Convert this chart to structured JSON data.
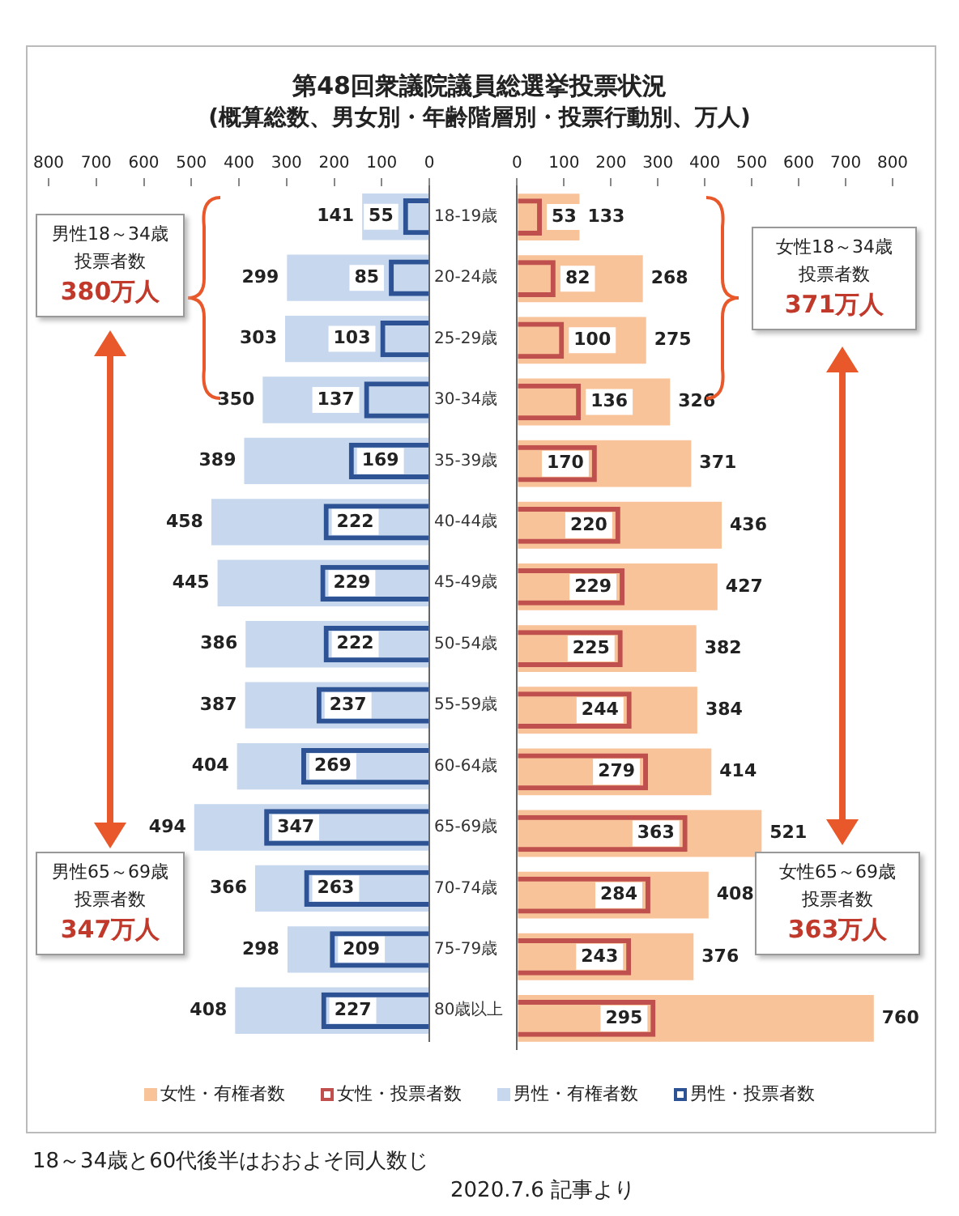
{
  "chart_data": [
    {
      "type": "bar",
      "orientation": "horizontal",
      "title": "第48回衆議院議員総選挙投票状況",
      "subtitle": "(概算総数、男女別・年齢階層別・投票行動別、万人)",
      "categories": [
        "18-19歳",
        "20-24歳",
        "25-29歳",
        "30-34歳",
        "35-39歳",
        "40-44歳",
        "45-49歳",
        "50-54歳",
        "55-59歳",
        "60-64歳",
        "65-69歳",
        "70-74歳",
        "75-79歳",
        "80歳以上"
      ],
      "series": [
        {
          "name": "男性・有権者数",
          "color": "#c6d7ee",
          "values": [
            141,
            299,
            303,
            350,
            389,
            458,
            445,
            386,
            387,
            404,
            494,
            366,
            298,
            408
          ]
        },
        {
          "name": "男性・投票者数",
          "color": "#2e5395",
          "values": [
            55,
            85,
            103,
            137,
            169,
            222,
            229,
            222,
            237,
            269,
            347,
            263,
            209,
            227
          ]
        }
      ],
      "xlim": [
        800,
        0
      ],
      "xticks": [
        800,
        700,
        600,
        500,
        400,
        300,
        200,
        100,
        0
      ],
      "grid": false,
      "legend": "bottom",
      "data_labels": true,
      "annotations": [
        "男性18～34歳",
        "投票者数",
        "380万人",
        "男性65～69歳",
        "投票者数",
        "347万人",
        "18～34歳と60代後半はおおよそ同人数じ",
        "2020.7.6 記事より"
      ]
    },
    {
      "type": "bar",
      "orientation": "horizontal",
      "categories": [
        null,
        null,
        null,
        null,
        null,
        null,
        null,
        null,
        null,
        null,
        null,
        null,
        null,
        null
      ],
      "series": [
        {
          "name": "女性・有権者数",
          "color": "#f9c39a",
          "values": [
            133,
            268,
            275,
            326,
            371,
            436,
            427,
            382,
            384,
            414,
            521,
            408,
            376,
            760
          ]
        },
        {
          "name": "女性・投票者数",
          "color": "#c0504d",
          "values": [
            53,
            82,
            100,
            136,
            170,
            220,
            229,
            225,
            244,
            279,
            363,
            284,
            243,
            295
          ]
        }
      ],
      "xlim": [
        0,
        800
      ],
      "xticks": [
        0,
        100,
        200,
        300,
        400,
        500,
        600,
        700,
        800
      ],
      "grid": false,
      "legend": "bottom",
      "data_labels": true,
      "tick_labels": "x",
      "annotations": [
        "女性18～34歳",
        "投票者数",
        "371万人",
        "女性65～69歳",
        "投票者数",
        "363万人"
      ]
    }
  ]
}
